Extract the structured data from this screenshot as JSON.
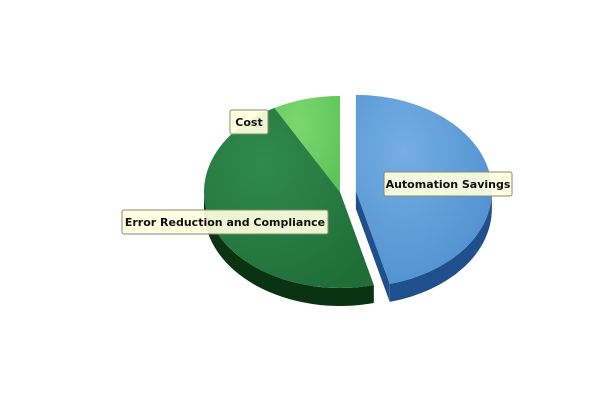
{
  "chart_data": {
    "type": "pie",
    "style": "3d-exploded",
    "title": "",
    "slices": [
      {
        "label": "Automation Savings",
        "value": 46,
        "color": "#4f8fcf",
        "dark": "#1f4f8c",
        "light": "#74aee3"
      },
      {
        "label": "Error Reduction and Compliance",
        "value": 46,
        "color": "#1f6e37",
        "dark": "#0a3314",
        "light": "#2f8a4d"
      },
      {
        "label": "Cost",
        "value": 8,
        "color": "#5ec45a",
        "dark": "#2f7a2a",
        "light": "#7bd86f"
      }
    ],
    "exploded": [
      "Automation Savings"
    ],
    "legend": "none",
    "data_labels": "callout boxes"
  }
}
